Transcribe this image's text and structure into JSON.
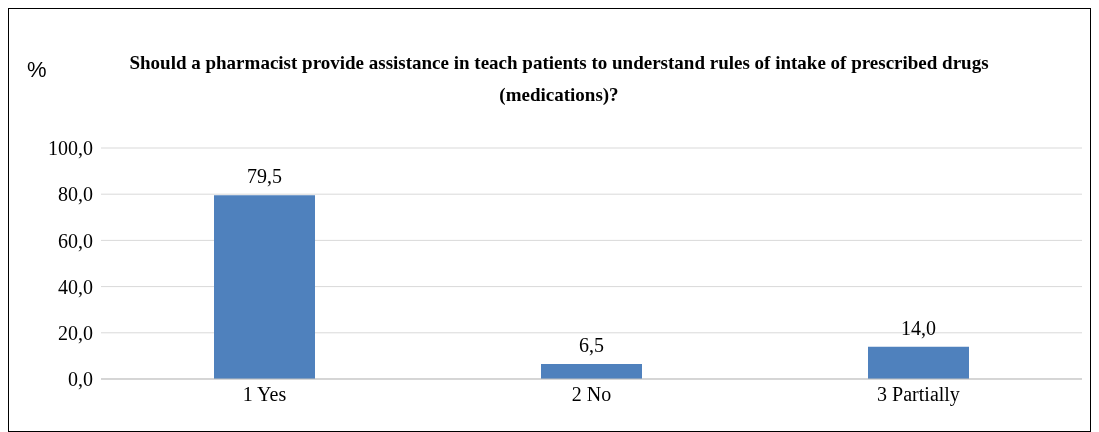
{
  "chart_data": {
    "type": "bar",
    "title": "Should a pharmacist provide assistance in teach patients to understand rules of intake of prescribed drugs (medications)?",
    "ylabel": "%",
    "categories": [
      "1 Yes",
      "2 No",
      "3 Partially"
    ],
    "values": [
      79.5,
      6.5,
      14.0
    ],
    "color": "#4f81bd",
    "value_labels": [
      "79,5",
      "6,5",
      "14,0"
    ],
    "ylim": [
      0,
      100
    ],
    "yticks": [
      {
        "value": 0,
        "label": "0,0"
      },
      {
        "value": 20,
        "label": "20,0"
      },
      {
        "value": 40,
        "label": "40,0"
      },
      {
        "value": 60,
        "label": "60,0"
      },
      {
        "value": 80,
        "label": "80,0"
      },
      {
        "value": 100,
        "label": "100,0"
      }
    ],
    "grid": "y",
    "legend": false
  }
}
